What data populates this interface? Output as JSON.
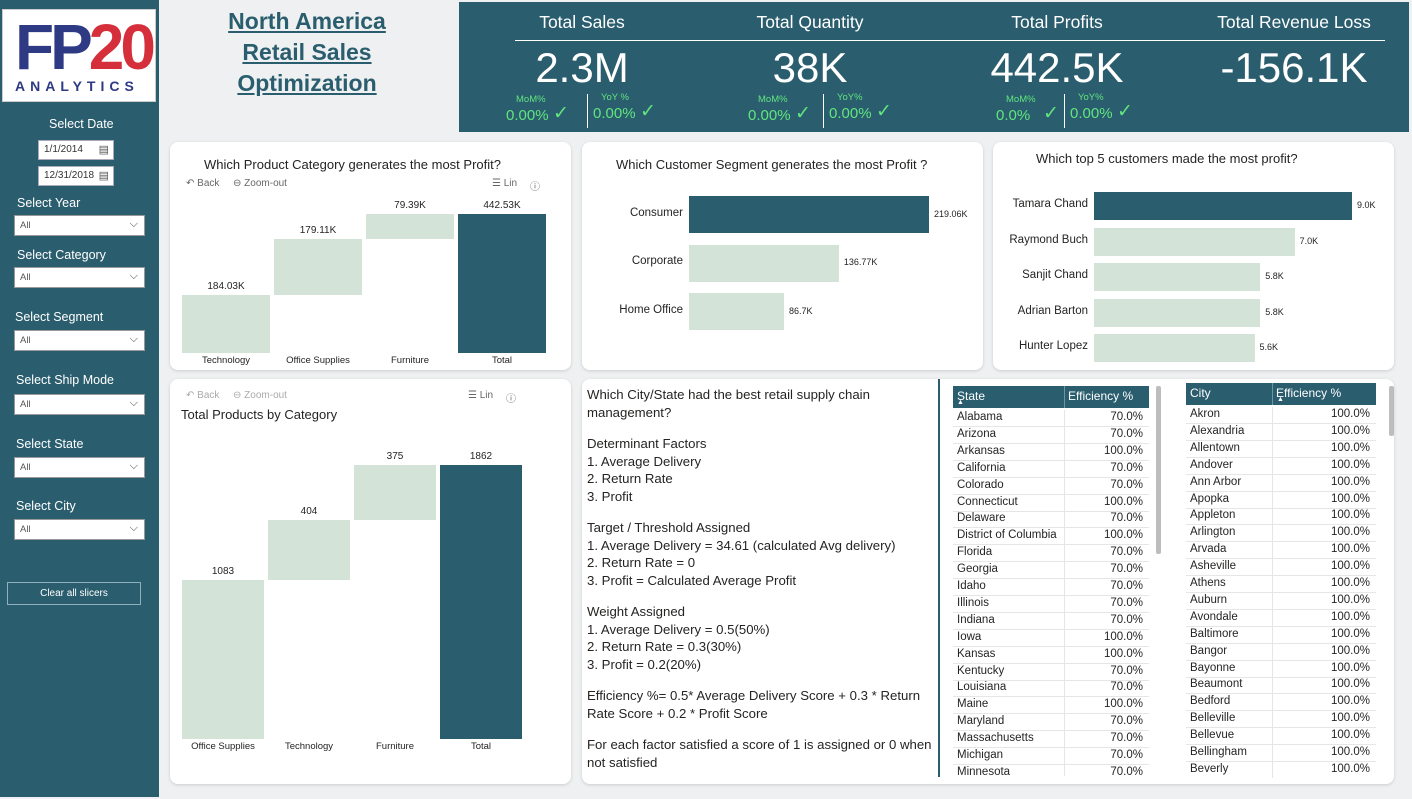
{
  "logo": {
    "fp": "FP",
    "num": "20",
    "word": "ANALYTICS"
  },
  "title": "North America Retail Sales Optimization",
  "sidebar": {
    "date_label": "Select Date",
    "date_start": "1/1/2014",
    "date_end": "12/31/2018",
    "slicers": [
      {
        "label": "Select Year",
        "value": "All"
      },
      {
        "label": "Select Category",
        "value": "All"
      },
      {
        "label": "Select Segment",
        "value": "All"
      },
      {
        "label": "Select Ship Mode",
        "value": "All"
      },
      {
        "label": "Select State",
        "value": "All"
      },
      {
        "label": "Select City",
        "value": "All"
      }
    ],
    "clear_label": "Clear all slicers"
  },
  "kpis": [
    {
      "title": "Total Sales",
      "value": "2.3M",
      "mom_label": "MoM%",
      "mom": "0.00%",
      "yoy_label": "YoY %",
      "yoy": "0.00%"
    },
    {
      "title": "Total Quantity",
      "value": "38K",
      "mom_label": "MoM%",
      "mom": "0.00%",
      "yoy_label": "YoY%",
      "yoy": "0.00%"
    },
    {
      "title": "Total Profits",
      "value": "442.5K",
      "mom_label": "MoM%",
      "mom": "0.0%",
      "yoy_label": "YoY%",
      "yoy": "0.00%"
    },
    {
      "title": "Total Revenue Loss",
      "value": "-156.1K"
    }
  ],
  "check_glyph": "✓",
  "toolbar": {
    "back": "Back",
    "zoom_out": "Zoom-out",
    "lin": "Lin"
  },
  "colors": {
    "primary": "#2a5d6e",
    "bar_light": "#d3e3d7",
    "positive": "#61e57f"
  },
  "chart_data": [
    {
      "type": "bar",
      "subtype": "waterfall",
      "title": "Which Product Category generates the most Profit?",
      "categories": [
        "Technology",
        "Office Supplies",
        "Furniture",
        "Total"
      ],
      "values": [
        184030,
        179110,
        79390,
        442530
      ],
      "labels": [
        "184.03K",
        "179.11K",
        "79.39K",
        "442.53K"
      ],
      "ylim": [
        0,
        450000
      ]
    },
    {
      "type": "bar",
      "orientation": "horizontal",
      "title": "Which Customer  Segment generates the most Profit ?",
      "categories": [
        "Consumer",
        "Corporate",
        "Home Office"
      ],
      "values": [
        219060,
        136770,
        86700
      ],
      "labels": [
        "219.06K",
        "136.77K",
        "86.7K"
      ]
    },
    {
      "type": "bar",
      "orientation": "horizontal",
      "title": "Which top 5 customers made the most profit?",
      "categories": [
        "Tamara Chand",
        "Raymond Buch",
        "Sanjit Chand",
        "Adrian Barton",
        "Hunter Lopez"
      ],
      "values": [
        9000,
        7000,
        5800,
        5800,
        5600
      ],
      "labels": [
        "9.0K",
        "7.0K",
        "5.8K",
        "5.8K",
        "5.6K"
      ]
    },
    {
      "type": "bar",
      "subtype": "waterfall",
      "title": "Total Products by  Category",
      "categories": [
        "Office Supplies",
        "Technology",
        "Furniture",
        "Total"
      ],
      "values": [
        1083,
        404,
        375,
        1862
      ],
      "labels": [
        "1083",
        "404",
        "375",
        "1862"
      ],
      "ylim": [
        0,
        1862
      ]
    }
  ],
  "efficiency_text": {
    "question": "Which City/State had the best retail supply chain management?",
    "factors_title": "Determinant Factors",
    "factors": [
      "1. Average Delivery",
      "2. Return Rate",
      "3. Profit"
    ],
    "target_title": "Target / Threshold Assigned",
    "targets": [
      "1. Average Delivery = 34.61 (calculated Avg delivery)",
      "2. Return Rate = 0",
      "3. Profit = Calculated Average Profit"
    ],
    "weight_title": "Weight Assigned",
    "weights": [
      "1. Average Delivery = 0.5(50%)",
      "2. Return Rate = 0.3(30%)",
      "3. Profit = 0.2(20%)"
    ],
    "formula": "Efficiency %= 0.5* Average Delivery Score + 0.3 * Return Rate Score + 0.2 * Profit Score",
    "note": "For each factor satisfied a score of 1 is assigned or 0 when not satisfied"
  },
  "state_table": {
    "headers": [
      "State",
      "Efficiency %"
    ],
    "rows": [
      [
        "Alabama",
        "70.0%"
      ],
      [
        "Arizona",
        "70.0%"
      ],
      [
        "Arkansas",
        "100.0%"
      ],
      [
        "California",
        "70.0%"
      ],
      [
        "Colorado",
        "70.0%"
      ],
      [
        "Connecticut",
        "100.0%"
      ],
      [
        "Delaware",
        "70.0%"
      ],
      [
        "District of Columbia",
        "100.0%"
      ],
      [
        "Florida",
        "70.0%"
      ],
      [
        "Georgia",
        "70.0%"
      ],
      [
        "Idaho",
        "70.0%"
      ],
      [
        "Illinois",
        "70.0%"
      ],
      [
        "Indiana",
        "70.0%"
      ],
      [
        "Iowa",
        "100.0%"
      ],
      [
        "Kansas",
        "100.0%"
      ],
      [
        "Kentucky",
        "70.0%"
      ],
      [
        "Louisiana",
        "70.0%"
      ],
      [
        "Maine",
        "100.0%"
      ],
      [
        "Maryland",
        "70.0%"
      ],
      [
        "Massachusetts",
        "70.0%"
      ],
      [
        "Michigan",
        "70.0%"
      ],
      [
        "Minnesota",
        "70.0%"
      ]
    ]
  },
  "city_table": {
    "headers": [
      "City",
      "Efficiency %"
    ],
    "rows": [
      [
        "Akron",
        "100.0%"
      ],
      [
        "Alexandria",
        "100.0%"
      ],
      [
        "Allentown",
        "100.0%"
      ],
      [
        "Andover",
        "100.0%"
      ],
      [
        "Ann Arbor",
        "100.0%"
      ],
      [
        "Apopka",
        "100.0%"
      ],
      [
        "Appleton",
        "100.0%"
      ],
      [
        "Arlington",
        "100.0%"
      ],
      [
        "Arvada",
        "100.0%"
      ],
      [
        "Asheville",
        "100.0%"
      ],
      [
        "Athens",
        "100.0%"
      ],
      [
        "Auburn",
        "100.0%"
      ],
      [
        "Avondale",
        "100.0%"
      ],
      [
        "Baltimore",
        "100.0%"
      ],
      [
        "Bangor",
        "100.0%"
      ],
      [
        "Bayonne",
        "100.0%"
      ],
      [
        "Beaumont",
        "100.0%"
      ],
      [
        "Bedford",
        "100.0%"
      ],
      [
        "Belleville",
        "100.0%"
      ],
      [
        "Bellevue",
        "100.0%"
      ],
      [
        "Bellingham",
        "100.0%"
      ],
      [
        "Beverly",
        "100.0%"
      ]
    ]
  }
}
